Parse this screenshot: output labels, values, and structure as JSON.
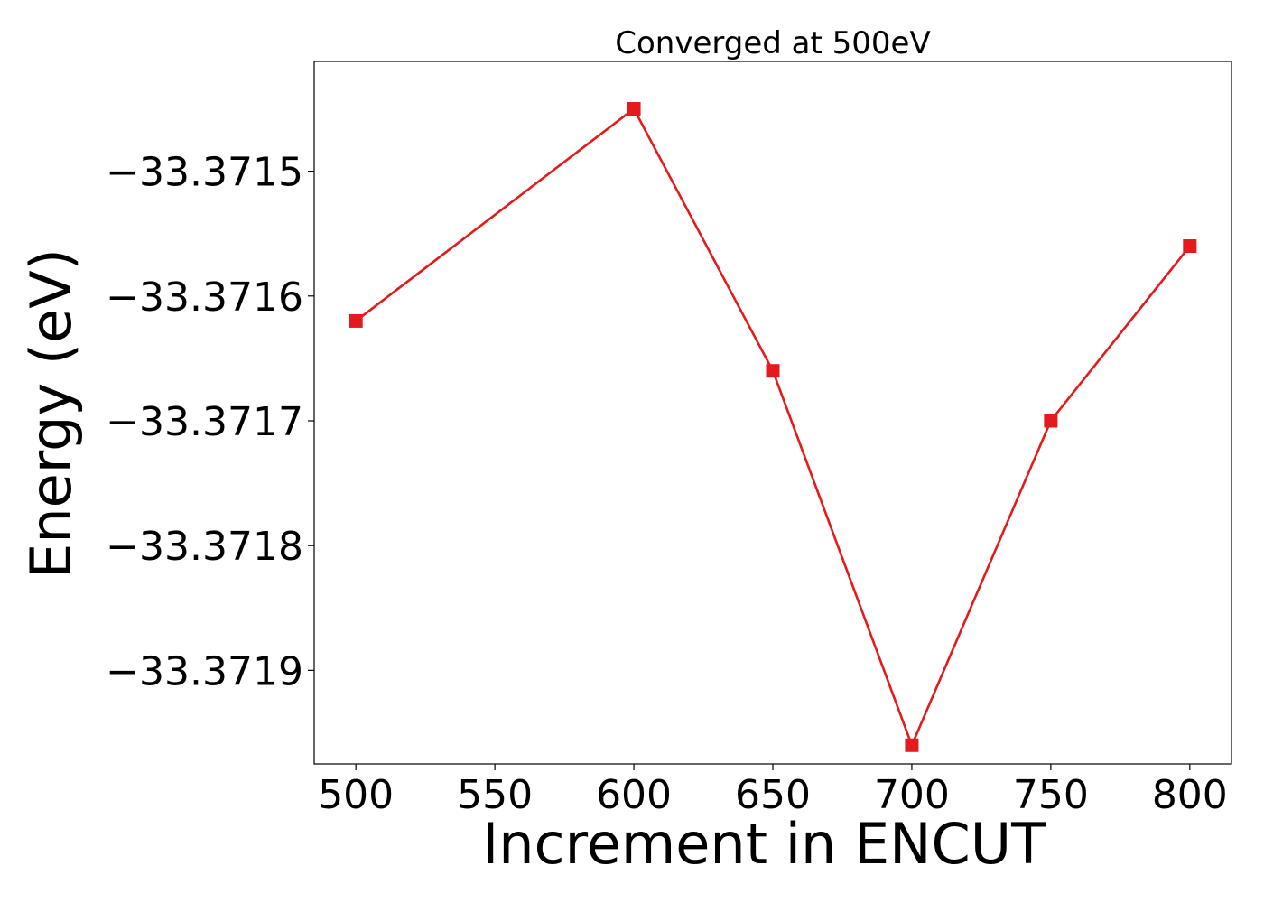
{
  "chart_data": {
    "type": "line",
    "title": "Converged at 500eV",
    "xlabel": "Increment in ENCUT",
    "ylabel": "Energy (eV)",
    "x": [
      500,
      600,
      650,
      700,
      750,
      800
    ],
    "series": [
      {
        "values": [
          -33.37162,
          -33.37145,
          -33.37166,
          -33.37196,
          -33.3717,
          -33.37156
        ],
        "color": "#e41a1c",
        "marker": "square"
      }
    ],
    "xticks": [
      500,
      550,
      600,
      650,
      700,
      750,
      800
    ],
    "xtick_labels": [
      "500",
      "550",
      "600",
      "650",
      "700",
      "750",
      "800"
    ],
    "yticks": [
      -33.3715,
      -33.3716,
      -33.3717,
      -33.3718,
      -33.3719
    ],
    "ytick_labels": [
      "−33.3715",
      "−33.3716",
      "−33.3717",
      "−33.3718",
      "−33.3719"
    ],
    "xlim": [
      485,
      815
    ],
    "ylim": [
      -33.371975,
      -33.371412
    ],
    "grid": false,
    "legend": "none"
  }
}
